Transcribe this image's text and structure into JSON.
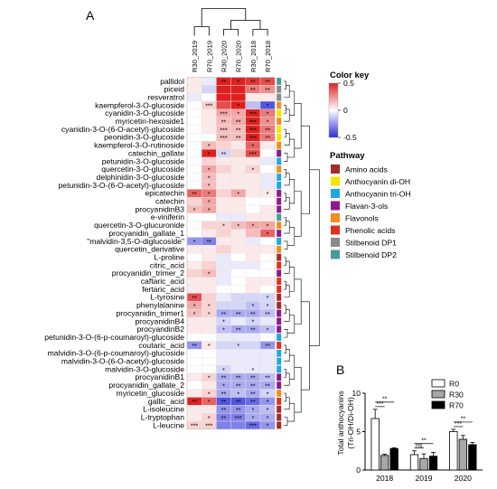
{
  "panels": {
    "a": "A",
    "b": "B"
  },
  "chart_data": [
    {
      "type": "heatmap",
      "columns": [
        "R30_2019",
        "R70_2019",
        "R30_2020",
        "R70_2020",
        "R30_2018",
        "R70_2018"
      ],
      "rows": [
        {
          "name": "pallidol",
          "pathway": "Stilbenoid DP2",
          "values": [
            0.05,
            -0.05,
            0.5,
            0.5,
            0.45,
            0.4
          ],
          "stars": [
            "",
            "",
            "**",
            "*",
            "**",
            "**"
          ]
        },
        {
          "name": "piceid",
          "pathway": "Stilbenoid DP1",
          "values": [
            0.05,
            -0.1,
            0.5,
            0.5,
            0.3,
            0.25
          ],
          "stars": [
            "",
            "",
            "",
            "",
            "**",
            "**"
          ]
        },
        {
          "name": "resveratrol",
          "pathway": "Stilbenoid DP1",
          "values": [
            -0.05,
            0.0,
            0.5,
            0.5,
            0.05,
            0.05
          ],
          "stars": [
            "",
            "",
            "",
            "",
            "",
            ""
          ]
        },
        {
          "name": "kaempferol-3-O-glucoside",
          "pathway": "Flavonols",
          "values": [
            0.0,
            0.1,
            0.4,
            0.5,
            -0.15,
            -0.4
          ],
          "stars": [
            "",
            "***",
            "",
            "*",
            "",
            "*"
          ]
        },
        {
          "name": "cyanidin-3-O-glucoside",
          "pathway": "Anthocyanin di-OH",
          "values": [
            0.0,
            0.05,
            0.2,
            0.2,
            0.5,
            0.3
          ],
          "stars": [
            "",
            "",
            "***",
            "*",
            "***",
            "*"
          ]
        },
        {
          "name": "myricetin-hexoside1",
          "pathway": "Flavonols",
          "values": [
            0.0,
            0.05,
            0.15,
            0.2,
            0.5,
            0.25
          ],
          "stars": [
            "",
            "",
            "**",
            "**",
            "***",
            "*"
          ]
        },
        {
          "name": "cyanidin-3-O-(6-O-acetyl)-glucoside",
          "pathway": "Anthocyanin di-OH",
          "values": [
            0.0,
            0.05,
            0.15,
            0.15,
            0.5,
            0.3
          ],
          "stars": [
            "",
            "",
            "***",
            "**",
            "***",
            "**"
          ]
        },
        {
          "name": "peonidin-3-O-glucoside",
          "pathway": "Anthocyanin di-OH",
          "values": [
            0.0,
            0.0,
            0.15,
            0.15,
            0.5,
            0.3
          ],
          "stars": [
            "",
            "",
            "***",
            "**",
            "***",
            "**"
          ]
        },
        {
          "name": "kaempferol-3-O-rutinoside",
          "pathway": "Flavonols",
          "values": [
            0.0,
            0.15,
            0.1,
            0.05,
            0.35,
            0.05
          ],
          "stars": [
            "",
            "*",
            "",
            "",
            "*",
            ""
          ]
        },
        {
          "name": "catechin_gallate",
          "pathway": "Flavan-3-ols",
          "values": [
            0.0,
            0.5,
            -0.1,
            0.1,
            0.4,
            0.0
          ],
          "stars": [
            "",
            "*",
            "**",
            "",
            "***",
            ""
          ]
        },
        {
          "name": "petunidin-3-O-glucoside",
          "pathway": "Anthocyanin tri-OH",
          "values": [
            0.0,
            0.1,
            0.05,
            0.05,
            0.05,
            -0.05
          ],
          "stars": [
            "",
            "",
            "",
            "",
            "",
            ""
          ]
        },
        {
          "name": "quercetin-3-O-glucoside",
          "pathway": "Flavonols",
          "values": [
            0.0,
            0.2,
            0.1,
            0.05,
            0.1,
            0.0
          ],
          "stars": [
            "",
            "*",
            "",
            "",
            "*",
            ""
          ]
        },
        {
          "name": "delphinidin-3-O-glucoside",
          "pathway": "Anthocyanin tri-OH",
          "values": [
            0.0,
            0.15,
            0.05,
            0.05,
            0.05,
            -0.05
          ],
          "stars": [
            "",
            "*",
            "",
            "",
            "",
            ""
          ]
        },
        {
          "name": "petunidin-3-O-(6-O-acetyl)-glucoside",
          "pathway": "Anthocyanin tri-OH",
          "values": [
            0.0,
            0.15,
            0.05,
            0.05,
            0.05,
            -0.05
          ],
          "stars": [
            "",
            "*",
            "",
            "",
            "",
            ""
          ]
        },
        {
          "name": "epicatechin",
          "pathway": "Flavan-3-ols",
          "values": [
            0.35,
            0.3,
            0.1,
            0.2,
            0.05,
            0.05
          ],
          "stars": [
            "**",
            "*",
            "",
            "*",
            "",
            "*"
          ]
        },
        {
          "name": "catechin",
          "pathway": "Flavan-3-ols",
          "values": [
            0.1,
            0.2,
            0.05,
            0.05,
            0.0,
            0.0
          ],
          "stars": [
            "",
            "*",
            "",
            "",
            "",
            ""
          ]
        },
        {
          "name": "procyanidinB3",
          "pathway": "Flavan-3-ols",
          "values": [
            0.15,
            0.2,
            0.05,
            0.05,
            0.0,
            0.05
          ],
          "stars": [
            "*",
            "*",
            "",
            "",
            "",
            ""
          ]
        },
        {
          "name": "e-viniferin",
          "pathway": "Stilbenoid DP2",
          "values": [
            0.0,
            0.0,
            -0.05,
            -0.05,
            0.05,
            0.05
          ],
          "stars": [
            "",
            "",
            "",
            "",
            "",
            ""
          ]
        },
        {
          "name": "quercetin-3-O-glucuronide",
          "pathway": "Flavonols",
          "values": [
            0.0,
            0.1,
            0.1,
            0.15,
            0.2,
            0.2
          ],
          "stars": [
            "",
            "",
            "*",
            "*",
            "*",
            "*"
          ]
        },
        {
          "name": "procyanidin_gallate_1",
          "pathway": "Flavan-3-ols",
          "values": [
            0.0,
            0.05,
            0.1,
            0.05,
            0.15,
            0.35
          ],
          "stars": [
            "",
            "",
            "",
            "",
            "",
            "*"
          ]
        },
        {
          "name": "\"malvidin-3,5-O-diglucoside\"",
          "pathway": "Anthocyanin tri-OH",
          "values": [
            -0.25,
            -0.3,
            0.05,
            0.05,
            -0.05,
            0.0
          ],
          "stars": [
            "*",
            "**",
            "",
            "",
            "",
            ""
          ]
        },
        {
          "name": "quercetin_derivative",
          "pathway": "Flavonols",
          "values": [
            0.05,
            0.05,
            0.1,
            0.05,
            0.05,
            0.05
          ],
          "stars": [
            "",
            "",
            "",
            "",
            "",
            ""
          ]
        },
        {
          "name": "L-proline",
          "pathway": "Amino acids",
          "values": [
            0.0,
            0.05,
            -0.05,
            0.0,
            0.05,
            0.0
          ],
          "stars": [
            "",
            "",
            "",
            "",
            "",
            ""
          ]
        },
        {
          "name": "citric_acid",
          "pathway": "Phenolic acids",
          "values": [
            0.05,
            0.1,
            -0.05,
            -0.05,
            -0.05,
            0.0
          ],
          "stars": [
            "",
            "",
            "",
            "",
            "",
            ""
          ]
        },
        {
          "name": "procyanidin_trimer_2",
          "pathway": "Flavan-3-ols",
          "values": [
            0.1,
            0.15,
            -0.05,
            0.0,
            0.0,
            0.0
          ],
          "stars": [
            "",
            "*",
            "",
            "",
            "",
            ""
          ]
        },
        {
          "name": "caftaric_acid",
          "pathway": "Phenolic acids",
          "values": [
            0.05,
            0.05,
            -0.05,
            0.0,
            0.05,
            0.05
          ],
          "stars": [
            "",
            "",
            "",
            "",
            "",
            ""
          ]
        },
        {
          "name": "fertaric_acid",
          "pathway": "Phenolic acids",
          "values": [
            0.05,
            0.05,
            0.0,
            0.0,
            0.05,
            0.0
          ],
          "stars": [
            "",
            "",
            "",
            "",
            "",
            ""
          ]
        },
        {
          "name": "L-tyrosine",
          "pathway": "Amino acids",
          "values": [
            0.4,
            0.1,
            -0.05,
            -0.1,
            -0.1,
            -0.1
          ],
          "stars": [
            "**",
            "",
            "",
            "",
            "",
            "*"
          ]
        },
        {
          "name": "phenylalanine",
          "pathway": "Amino acids",
          "values": [
            0.2,
            0.1,
            -0.1,
            -0.1,
            -0.15,
            -0.1
          ],
          "stars": [
            "*",
            "*",
            "",
            "",
            "*",
            "*"
          ]
        },
        {
          "name": "procyanidin_trimer1",
          "pathway": "Flavan-3-ols",
          "values": [
            0.15,
            0.1,
            -0.2,
            -0.2,
            -0.2,
            -0.15
          ],
          "stars": [
            "*",
            "*",
            "**",
            "**",
            "**",
            "**"
          ]
        },
        {
          "name": "procyanidinB4",
          "pathway": "Flavan-3-ols",
          "values": [
            0.05,
            0.05,
            -0.1,
            -0.05,
            -0.1,
            -0.05
          ],
          "stars": [
            "",
            "",
            "*",
            "",
            "*",
            ""
          ]
        },
        {
          "name": "procyandinB2",
          "pathway": "Flavan-3-ols",
          "values": [
            0.05,
            0.05,
            -0.15,
            -0.2,
            -0.2,
            -0.15
          ],
          "stars": [
            "",
            "",
            "*",
            "**",
            "**",
            "*"
          ]
        },
        {
          "name": "petunidin-3-O-(6-p-coumaroyl)-glucoside",
          "pathway": "Anthocyanin tri-OH",
          "values": [
            0.0,
            0.0,
            -0.05,
            -0.05,
            -0.05,
            0.0
          ],
          "stars": [
            "",
            "",
            "",
            "",
            "",
            ""
          ]
        },
        {
          "name": "coutaric_acid",
          "pathway": "Phenolic acids",
          "values": [
            -0.25,
            0.05,
            -0.1,
            -0.1,
            -0.1,
            -0.25
          ],
          "stars": [
            "**",
            "*",
            "",
            "*",
            "",
            "**"
          ]
        },
        {
          "name": "malvidin-3-O-(6-p-coumaroyl)-glucoside",
          "pathway": "Anthocyanin tri-OH",
          "values": [
            0.0,
            0.0,
            -0.05,
            -0.05,
            -0.05,
            -0.05
          ],
          "stars": [
            "",
            "",
            "",
            "",
            "",
            ""
          ]
        },
        {
          "name": "malvidin-3-O-(6-O-acetyl)-glucoside",
          "pathway": "Anthocyanin tri-OH",
          "values": [
            0.0,
            0.0,
            -0.05,
            -0.05,
            -0.05,
            -0.05
          ],
          "stars": [
            "",
            "",
            "",
            "",
            "",
            ""
          ]
        },
        {
          "name": "malvidin-3-O-glucoside",
          "pathway": "Anthocyanin tri-OH",
          "values": [
            0.0,
            0.0,
            -0.1,
            -0.05,
            -0.05,
            -0.05
          ],
          "stars": [
            "",
            "",
            "*",
            "",
            "*",
            ""
          ]
        },
        {
          "name": "procyanidinB1",
          "pathway": "Flavan-3-ols",
          "values": [
            0.05,
            0.1,
            -0.2,
            -0.2,
            -0.2,
            -0.15
          ],
          "stars": [
            "",
            "*",
            "**",
            "**",
            "**",
            "**"
          ]
        },
        {
          "name": "procyanidin_gallate_2",
          "pathway": "Flavan-3-ols",
          "values": [
            0.0,
            0.05,
            -0.2,
            -0.2,
            -0.2,
            -0.2
          ],
          "stars": [
            "",
            "",
            "*",
            "**",
            "**",
            "**"
          ]
        },
        {
          "name": "myricetin_glucoside",
          "pathway": "Flavonols",
          "values": [
            0.05,
            0.1,
            -0.2,
            -0.15,
            -0.2,
            -0.1
          ],
          "stars": [
            "",
            "*",
            "**",
            "*",
            "**",
            "*"
          ]
        },
        {
          "name": "gallic_acid",
          "pathway": "Phenolic acids",
          "values": [
            0.5,
            0.35,
            -0.4,
            -0.4,
            -0.35,
            -0.25
          ],
          "stars": [
            "**",
            "*",
            "**",
            "**",
            "**",
            "*"
          ]
        },
        {
          "name": "L-isoleucine",
          "pathway": "Amino acids",
          "values": [
            0.05,
            0.05,
            -0.25,
            -0.25,
            -0.2,
            -0.15
          ],
          "stars": [
            "",
            "",
            "**",
            "**",
            "*",
            "*"
          ]
        },
        {
          "name": "L-tryptophan",
          "pathway": "Amino acids",
          "values": [
            0.05,
            0.1,
            -0.3,
            -0.3,
            -0.2,
            -0.2
          ],
          "stars": [
            "",
            "*",
            "**",
            "***",
            "*",
            "*"
          ]
        },
        {
          "name": "L-leucine",
          "pathway": "Amino acids",
          "values": [
            0.1,
            0.1,
            -0.3,
            -0.3,
            -0.35,
            -0.25
          ],
          "stars": [
            "***",
            "***",
            "",
            "",
            "***",
            "*"
          ]
        }
      ],
      "color_key": {
        "title": "Color key",
        "min": -0.5,
        "max": 0.5,
        "ticks": [
          "0.5",
          "0",
          "-0.5"
        ],
        "low": "#2b2bd9",
        "mid": "#ffffff",
        "high": "#e02020"
      },
      "pathway_legend": {
        "title": "Pathway",
        "items": [
          {
            "name": "Amino acids",
            "color": "#a52a2a"
          },
          {
            "name": "Anthocyanin di-OH",
            "color": "#f2e600"
          },
          {
            "name": "Anthocyanin tri-OH",
            "color": "#1ea7e1"
          },
          {
            "name": "Flavan-3-ols",
            "color": "#8b1a8b"
          },
          {
            "name": "Flavonols",
            "color": "#f28c1a"
          },
          {
            "name": "Phenolic acids",
            "color": "#e0301e"
          },
          {
            "name": "Stilbenoid DP1",
            "color": "#8a8a8a"
          },
          {
            "name": "Stilbenoid DP2",
            "color": "#4a9a9a"
          }
        ]
      }
    },
    {
      "type": "bar",
      "categories": [
        "2018",
        "2019",
        "2020"
      ],
      "series": [
        {
          "name": "R0",
          "values": [
            6.7,
            2.0,
            5.0
          ],
          "errors": [
            1.2,
            0.5,
            0.3
          ],
          "color": "#ffffff"
        },
        {
          "name": "R30",
          "values": [
            1.9,
            1.5,
            4.0
          ],
          "errors": [
            0.15,
            0.6,
            0.5
          ],
          "color": "#a8a8a8"
        },
        {
          "name": "R70",
          "values": [
            2.8,
            1.8,
            3.3
          ],
          "errors": [
            0.1,
            0.5,
            0.3
          ],
          "color": "#000000"
        }
      ],
      "ylabel": "Total anthocyanins",
      "ylabel2": "(Tri-OH/Di-OH)",
      "ylim": [
        0,
        10
      ],
      "yticks": [
        "0",
        "5",
        "10"
      ],
      "significance": [
        {
          "year": "2018",
          "stars": [
            "**",
            "***"
          ]
        },
        {
          "year": "2019",
          "stars": [
            "**",
            "ns"
          ]
        },
        {
          "year": "2020",
          "stars": [
            "**",
            "***"
          ]
        }
      ]
    }
  ]
}
